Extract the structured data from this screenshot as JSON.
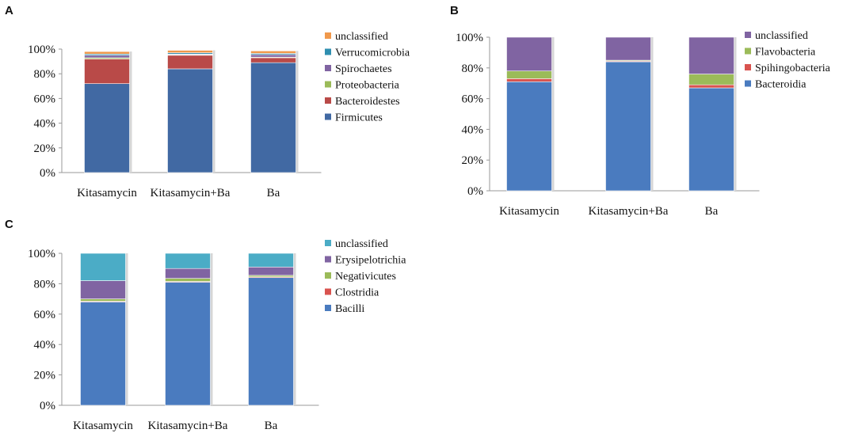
{
  "colors": {
    "blue": "#4a7bbf",
    "blue_dark": "#4169a3",
    "red": "#b94a48",
    "red_light": "#d9534f",
    "green": "#9bbb59",
    "purple": "#8064a2",
    "teal": "#4bacc6",
    "teal_dark": "#2f8fb0",
    "orange": "#f0994c"
  },
  "chart_data": [
    {
      "panel": "A",
      "type": "bar",
      "stacked": true,
      "categories": [
        "Kitasamycin",
        "Kitasamycin+Ba",
        "Ba"
      ],
      "ylim": [
        0,
        100
      ],
      "yticks": [
        "0%",
        "20%",
        "40%",
        "60%",
        "80%",
        "100%"
      ],
      "legend": [
        "unclassified",
        "Verrucomicrobia",
        "Spirochaetes",
        "Proteobacteria",
        "Bacteroidestes",
        "Firmicutes"
      ],
      "series": [
        {
          "name": "Firmicutes",
          "color": "#4169a3",
          "values": [
            72,
            84,
            89
          ]
        },
        {
          "name": "Bacteroidestes",
          "color": "#b94a48",
          "values": [
            20,
            11,
            4
          ]
        },
        {
          "name": "Proteobacteria",
          "color": "#9bbb59",
          "values": [
            1,
            0.5,
            0.5
          ]
        },
        {
          "name": "Spirochaetes",
          "color": "#8064a2",
          "values": [
            2,
            0.5,
            2
          ]
        },
        {
          "name": "Verrucomicrobia",
          "color": "#2f8fb0",
          "values": [
            1,
            1,
            1
          ]
        },
        {
          "name": "unclassified",
          "color": "#f0994c",
          "values": [
            2,
            2,
            2
          ]
        }
      ]
    },
    {
      "panel": "B",
      "type": "bar",
      "stacked": true,
      "categories": [
        "Kitasamycin",
        "Kitasamycin+Ba",
        "Ba"
      ],
      "ylim": [
        0,
        100
      ],
      "yticks": [
        "0%",
        "20%",
        "40%",
        "60%",
        "80%",
        "100%"
      ],
      "legend": [
        "unclassified",
        "Flavobacteria",
        "Spihingobacteria",
        "Bacteroidia"
      ],
      "series": [
        {
          "name": "Bacteroidia",
          "color": "#4a7bbf",
          "values": [
            71,
            84,
            67
          ]
        },
        {
          "name": "Spihingobacteria",
          "color": "#d9534f",
          "values": [
            2,
            0.5,
            2
          ]
        },
        {
          "name": "Flavobacteria",
          "color": "#9bbb59",
          "values": [
            5,
            0.5,
            7
          ]
        },
        {
          "name": "unclassified",
          "color": "#8064a2",
          "values": [
            22,
            15,
            24
          ]
        }
      ]
    },
    {
      "panel": "C",
      "type": "bar",
      "stacked": true,
      "categories": [
        "Kitasamycin",
        "Kitasamycin+Ba",
        "Ba"
      ],
      "ylim": [
        0,
        100
      ],
      "yticks": [
        "0%",
        "20%",
        "40%",
        "60%",
        "80%",
        "100%"
      ],
      "legend": [
        "unclassified",
        "Erysipelotrichia",
        "Negativicutes",
        "Clostridia",
        "Bacilli"
      ],
      "series": [
        {
          "name": "Bacilli",
          "color": "#4a7bbf",
          "values": [
            68,
            81,
            84
          ]
        },
        {
          "name": "Clostridia",
          "color": "#d9534f",
          "values": [
            0.5,
            0.5,
            0.5
          ]
        },
        {
          "name": "Negativicutes",
          "color": "#9bbb59",
          "values": [
            1.5,
            2,
            1
          ]
        },
        {
          "name": "Erysipelotrichia",
          "color": "#8064a2",
          "values": [
            12,
            6.5,
            5.5
          ]
        },
        {
          "name": "unclassified",
          "color": "#4bacc6",
          "values": [
            18,
            10,
            9
          ]
        }
      ]
    }
  ]
}
